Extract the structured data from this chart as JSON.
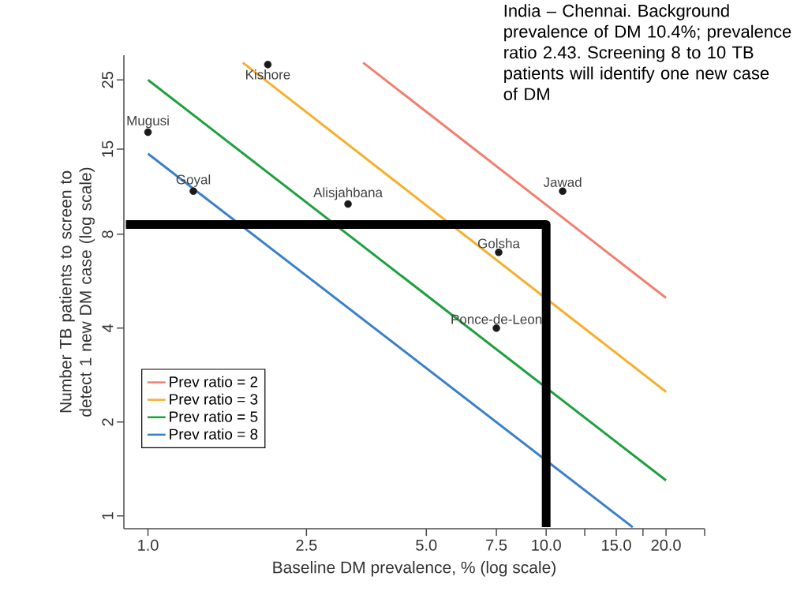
{
  "chart_data": {
    "type": "line",
    "xlabel": "Baseline DM prevalence, % (log scale)",
    "ylabel": "Number TB patients to screen to detect 1 new DM case (log scale)",
    "log": "xy",
    "legend": "bottom left",
    "xlim": [
      0.87,
      25
    ],
    "ylim": [
      0.91,
      30
    ],
    "xticks": [
      {
        "value": 1,
        "label": "1.0"
      },
      {
        "value": 2.5,
        "label": "2.5"
      },
      {
        "value": 5,
        "label": "5.0"
      },
      {
        "value": 7.5,
        "label": "7.5"
      },
      {
        "value": 10,
        "label": "10.0"
      },
      {
        "value": 12.5,
        "label": null
      },
      {
        "value": 15,
        "label": "15.0"
      },
      {
        "value": 17.5,
        "label": null
      },
      {
        "value": 20,
        "label": "20.0"
      },
      {
        "value": 25,
        "label": null
      }
    ],
    "yticks": [
      1,
      2,
      4,
      8,
      15,
      25
    ],
    "series": [
      {
        "name": "Prev ratio = 2",
        "color": "#f08070",
        "x": [
          3.47,
          20
        ],
        "values": [
          28.4,
          5.0
        ]
      },
      {
        "name": "Prev ratio = 3",
        "color": "#f5b030",
        "x": [
          1.73,
          20
        ],
        "values": [
          28.4,
          2.5
        ]
      },
      {
        "name": "Prev ratio = 5",
        "color": "#1fa040",
        "x": [
          1.0,
          20
        ],
        "values": [
          25,
          1.3
        ]
      },
      {
        "name": "Prev ratio = 8",
        "color": "#3a80c8",
        "x": [
          1.0,
          16.5
        ],
        "values": [
          14.5,
          0.92
        ]
      },
      {
        "color": "#000000",
        "x": [
          0.88,
          10,
          10
        ],
        "values": [
          8.6,
          8.6,
          0.92
        ]
      },
      {
        "type": "scatter",
        "color": "#1a1a1a",
        "x": [
          2.0,
          1.0,
          1.3,
          3.18,
          11.0,
          7.6,
          7.5
        ],
        "values": [
          28,
          17,
          11.0,
          10.0,
          11.0,
          7.0,
          4.0
        ]
      }
    ],
    "annotations": [
      "India – Chennai. Background prevalence of DM 10.4%; prevalence ratio 2.43. Screening 8 to 10 TB patients will identify one new case of DM",
      {
        "text": "Kishore",
        "x": 2.0,
        "y": 28
      },
      {
        "text": "Mugusi",
        "x": 1.0,
        "y": 17
      },
      {
        "text": "Goyal",
        "x": 1.3,
        "y": 11.0
      },
      {
        "text": "Alisjahbana",
        "x": 3.18,
        "y": 10.0
      },
      {
        "text": "Jawad",
        "x": 11.0,
        "y": 11.0
      },
      {
        "text": "Golsha",
        "x": 7.6,
        "y": 7.0
      },
      {
        "text": "Ponce-de-Leon",
        "x": 7.5,
        "y": 4.0
      }
    ]
  }
}
